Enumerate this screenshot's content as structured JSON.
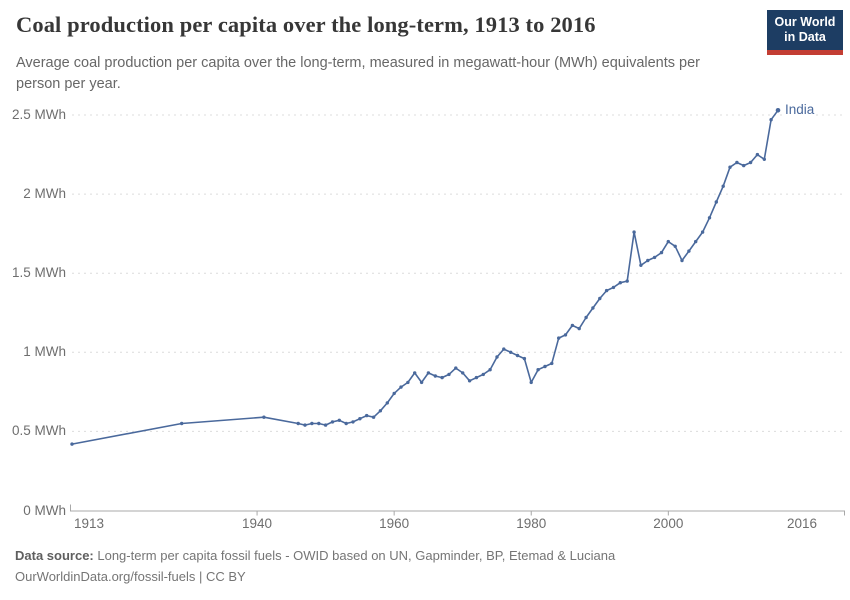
{
  "header": {
    "title": "Coal production per capita over the long-term, 1913 to 2016",
    "subtitle": "Average coal production per capita over the long-term, measured in megawatt-hour (MWh) equivalents per person per year."
  },
  "logo": {
    "line1": "Our World",
    "line2": "in Data",
    "bg_color": "#1d3d63",
    "bar_color": "#c33d33"
  },
  "chart_data": {
    "type": "line",
    "title": "Coal production per capita over the long-term, 1913 to 2016",
    "xlabel": "",
    "ylabel": "",
    "unit": "MWh",
    "xlim": [
      1913,
      2016
    ],
    "ylim": [
      0,
      2.5
    ],
    "grid": "horizontal-dashed",
    "legend_position": "end-of-line",
    "x_ticks": [
      1913,
      1940,
      1960,
      1980,
      2000,
      2016
    ],
    "y_ticks": [
      {
        "value": 0,
        "label": "0 MWh"
      },
      {
        "value": 0.5,
        "label": "0.5 MWh"
      },
      {
        "value": 1,
        "label": "1 MWh"
      },
      {
        "value": 1.5,
        "label": "1.5 MWh"
      },
      {
        "value": 2,
        "label": "2 MWh"
      },
      {
        "value": 2.5,
        "label": "2.5 MWh"
      }
    ],
    "series": [
      {
        "name": "India",
        "color": "#4a699c",
        "points": [
          [
            1913,
            0.42
          ],
          [
            1929,
            0.55
          ],
          [
            1941,
            0.59
          ],
          [
            1946,
            0.55
          ],
          [
            1947,
            0.54
          ],
          [
            1948,
            0.55
          ],
          [
            1949,
            0.55
          ],
          [
            1950,
            0.54
          ],
          [
            1951,
            0.56
          ],
          [
            1952,
            0.57
          ],
          [
            1953,
            0.55
          ],
          [
            1954,
            0.56
          ],
          [
            1955,
            0.58
          ],
          [
            1956,
            0.6
          ],
          [
            1957,
            0.59
          ],
          [
            1958,
            0.63
          ],
          [
            1959,
            0.68
          ],
          [
            1960,
            0.74
          ],
          [
            1961,
            0.78
          ],
          [
            1962,
            0.81
          ],
          [
            1963,
            0.87
          ],
          [
            1964,
            0.81
          ],
          [
            1965,
            0.87
          ],
          [
            1966,
            0.85
          ],
          [
            1967,
            0.84
          ],
          [
            1968,
            0.86
          ],
          [
            1969,
            0.9
          ],
          [
            1970,
            0.87
          ],
          [
            1971,
            0.82
          ],
          [
            1972,
            0.84
          ],
          [
            1973,
            0.86
          ],
          [
            1974,
            0.89
          ],
          [
            1975,
            0.97
          ],
          [
            1976,
            1.02
          ],
          [
            1977,
            1.0
          ],
          [
            1978,
            0.98
          ],
          [
            1979,
            0.96
          ],
          [
            1980,
            0.81
          ],
          [
            1981,
            0.89
          ],
          [
            1982,
            0.91
          ],
          [
            1983,
            0.93
          ],
          [
            1984,
            1.09
          ],
          [
            1985,
            1.11
          ],
          [
            1986,
            1.17
          ],
          [
            1987,
            1.15
          ],
          [
            1988,
            1.22
          ],
          [
            1989,
            1.28
          ],
          [
            1990,
            1.34
          ],
          [
            1991,
            1.39
          ],
          [
            1992,
            1.41
          ],
          [
            1993,
            1.44
          ],
          [
            1994,
            1.45
          ],
          [
            1995,
            1.76
          ],
          [
            1996,
            1.55
          ],
          [
            1997,
            1.58
          ],
          [
            1998,
            1.6
          ],
          [
            1999,
            1.63
          ],
          [
            2000,
            1.7
          ],
          [
            2001,
            1.67
          ],
          [
            2002,
            1.58
          ],
          [
            2003,
            1.64
          ],
          [
            2004,
            1.7
          ],
          [
            2005,
            1.76
          ],
          [
            2006,
            1.85
          ],
          [
            2007,
            1.95
          ],
          [
            2008,
            2.05
          ],
          [
            2009,
            2.17
          ],
          [
            2010,
            2.2
          ],
          [
            2011,
            2.18
          ],
          [
            2012,
            2.2
          ],
          [
            2013,
            2.25
          ],
          [
            2014,
            2.22
          ],
          [
            2015,
            2.47
          ],
          [
            2016,
            2.53
          ]
        ]
      }
    ],
    "colors": {
      "line": "#4a699c",
      "grid": "#dcdcdc",
      "axis": "#a8a8a8",
      "tick_text": "#6e6e6e"
    }
  },
  "footer": {
    "datasource_label": "Data source:",
    "datasource_text": " Long-term per capita fossil fuels - OWID based on UN, Gapminder, BP, Etemad & Luciana",
    "license_line": "OurWorldinData.org/fossil-fuels | CC BY"
  }
}
